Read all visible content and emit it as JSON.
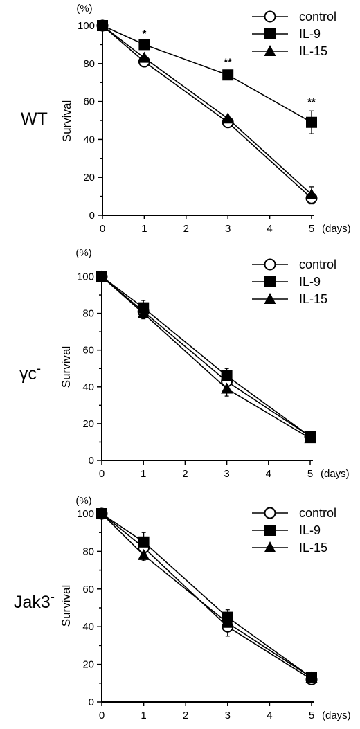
{
  "chart_data": [
    {
      "type": "line",
      "panel_label": "WT",
      "superscript": "",
      "ylabel": "Survival",
      "yunit": "(%)",
      "xunit": "(days)",
      "ylim": [
        0,
        100
      ],
      "xlim": [
        0,
        5
      ],
      "yticks": [
        "0",
        "20",
        "40",
        "60",
        "80",
        "100"
      ],
      "xticks": [
        "0",
        "1",
        "2",
        "3",
        "4",
        "5"
      ],
      "x": [
        0,
        1,
        3,
        5
      ],
      "series": [
        {
          "name": "control",
          "marker": "circle-open",
          "values": [
            100,
            81,
            49,
            9
          ],
          "errors": [
            0,
            1,
            1,
            3
          ]
        },
        {
          "name": "IL-9",
          "marker": "square-filled",
          "values": [
            100,
            90,
            74,
            49
          ],
          "errors": [
            0,
            2,
            1,
            6
          ]
        },
        {
          "name": "IL-15",
          "marker": "triangle-filled",
          "values": [
            100,
            83,
            51,
            11
          ],
          "errors": [
            0,
            1,
            1,
            4
          ]
        }
      ],
      "significance": [
        {
          "x": 1,
          "y": 94,
          "text": "*"
        },
        {
          "x": 3,
          "y": 79,
          "text": "**"
        },
        {
          "x": 5,
          "y": 58,
          "text": "**"
        }
      ],
      "legend": {
        "placement": "top-right",
        "labels": [
          "control",
          "IL-9",
          "IL-15"
        ]
      }
    },
    {
      "type": "line",
      "panel_label": "γc",
      "superscript": "-",
      "ylabel": "Survival",
      "yunit": "(%)",
      "xunit": "(days)",
      "ylim": [
        0,
        100
      ],
      "xlim": [
        0,
        5
      ],
      "yticks": [
        "0",
        "20",
        "40",
        "60",
        "80",
        "100"
      ],
      "xticks": [
        "0",
        "1",
        "2",
        "3",
        "4",
        "5"
      ],
      "x": [
        0,
        1,
        3,
        5
      ],
      "series": [
        {
          "name": "control",
          "marker": "circle-open",
          "values": [
            100,
            81,
            43,
            13
          ],
          "errors": [
            0,
            3,
            4,
            2
          ]
        },
        {
          "name": "IL-9",
          "marker": "square-filled",
          "values": [
            100,
            83,
            46,
            13
          ],
          "errors": [
            0,
            4,
            4,
            2
          ]
        },
        {
          "name": "IL-15",
          "marker": "triangle-filled",
          "values": [
            100,
            80,
            39,
            12
          ],
          "errors": [
            0,
            3,
            4,
            2
          ]
        }
      ],
      "significance": [],
      "legend": {
        "placement": "top-right",
        "labels": [
          "control",
          "IL-9",
          "IL-15"
        ]
      }
    },
    {
      "type": "line",
      "panel_label": "Jak3",
      "superscript": "-",
      "ylabel": "Survival",
      "yunit": "(%)",
      "xunit": "(days)",
      "ylim": [
        0,
        100
      ],
      "xlim": [
        0,
        5
      ],
      "yticks": [
        "0",
        "20",
        "40",
        "60",
        "80",
        "100"
      ],
      "xticks": [
        "0",
        "1",
        "2",
        "3",
        "4",
        "5"
      ],
      "x": [
        0,
        1,
        3,
        5
      ],
      "series": [
        {
          "name": "control",
          "marker": "circle-open",
          "values": [
            100,
            82,
            40,
            12
          ],
          "errors": [
            0,
            4,
            5,
            2
          ]
        },
        {
          "name": "IL-9",
          "marker": "square-filled",
          "values": [
            100,
            85,
            45,
            13
          ],
          "errors": [
            0,
            5,
            4,
            2
          ]
        },
        {
          "name": "IL-15",
          "marker": "triangle-filled",
          "values": [
            100,
            78,
            42,
            13
          ],
          "errors": [
            0,
            3,
            4,
            2
          ]
        }
      ],
      "significance": [],
      "legend": {
        "placement": "top-right",
        "labels": [
          "control",
          "IL-9",
          "IL-15"
        ]
      }
    }
  ]
}
